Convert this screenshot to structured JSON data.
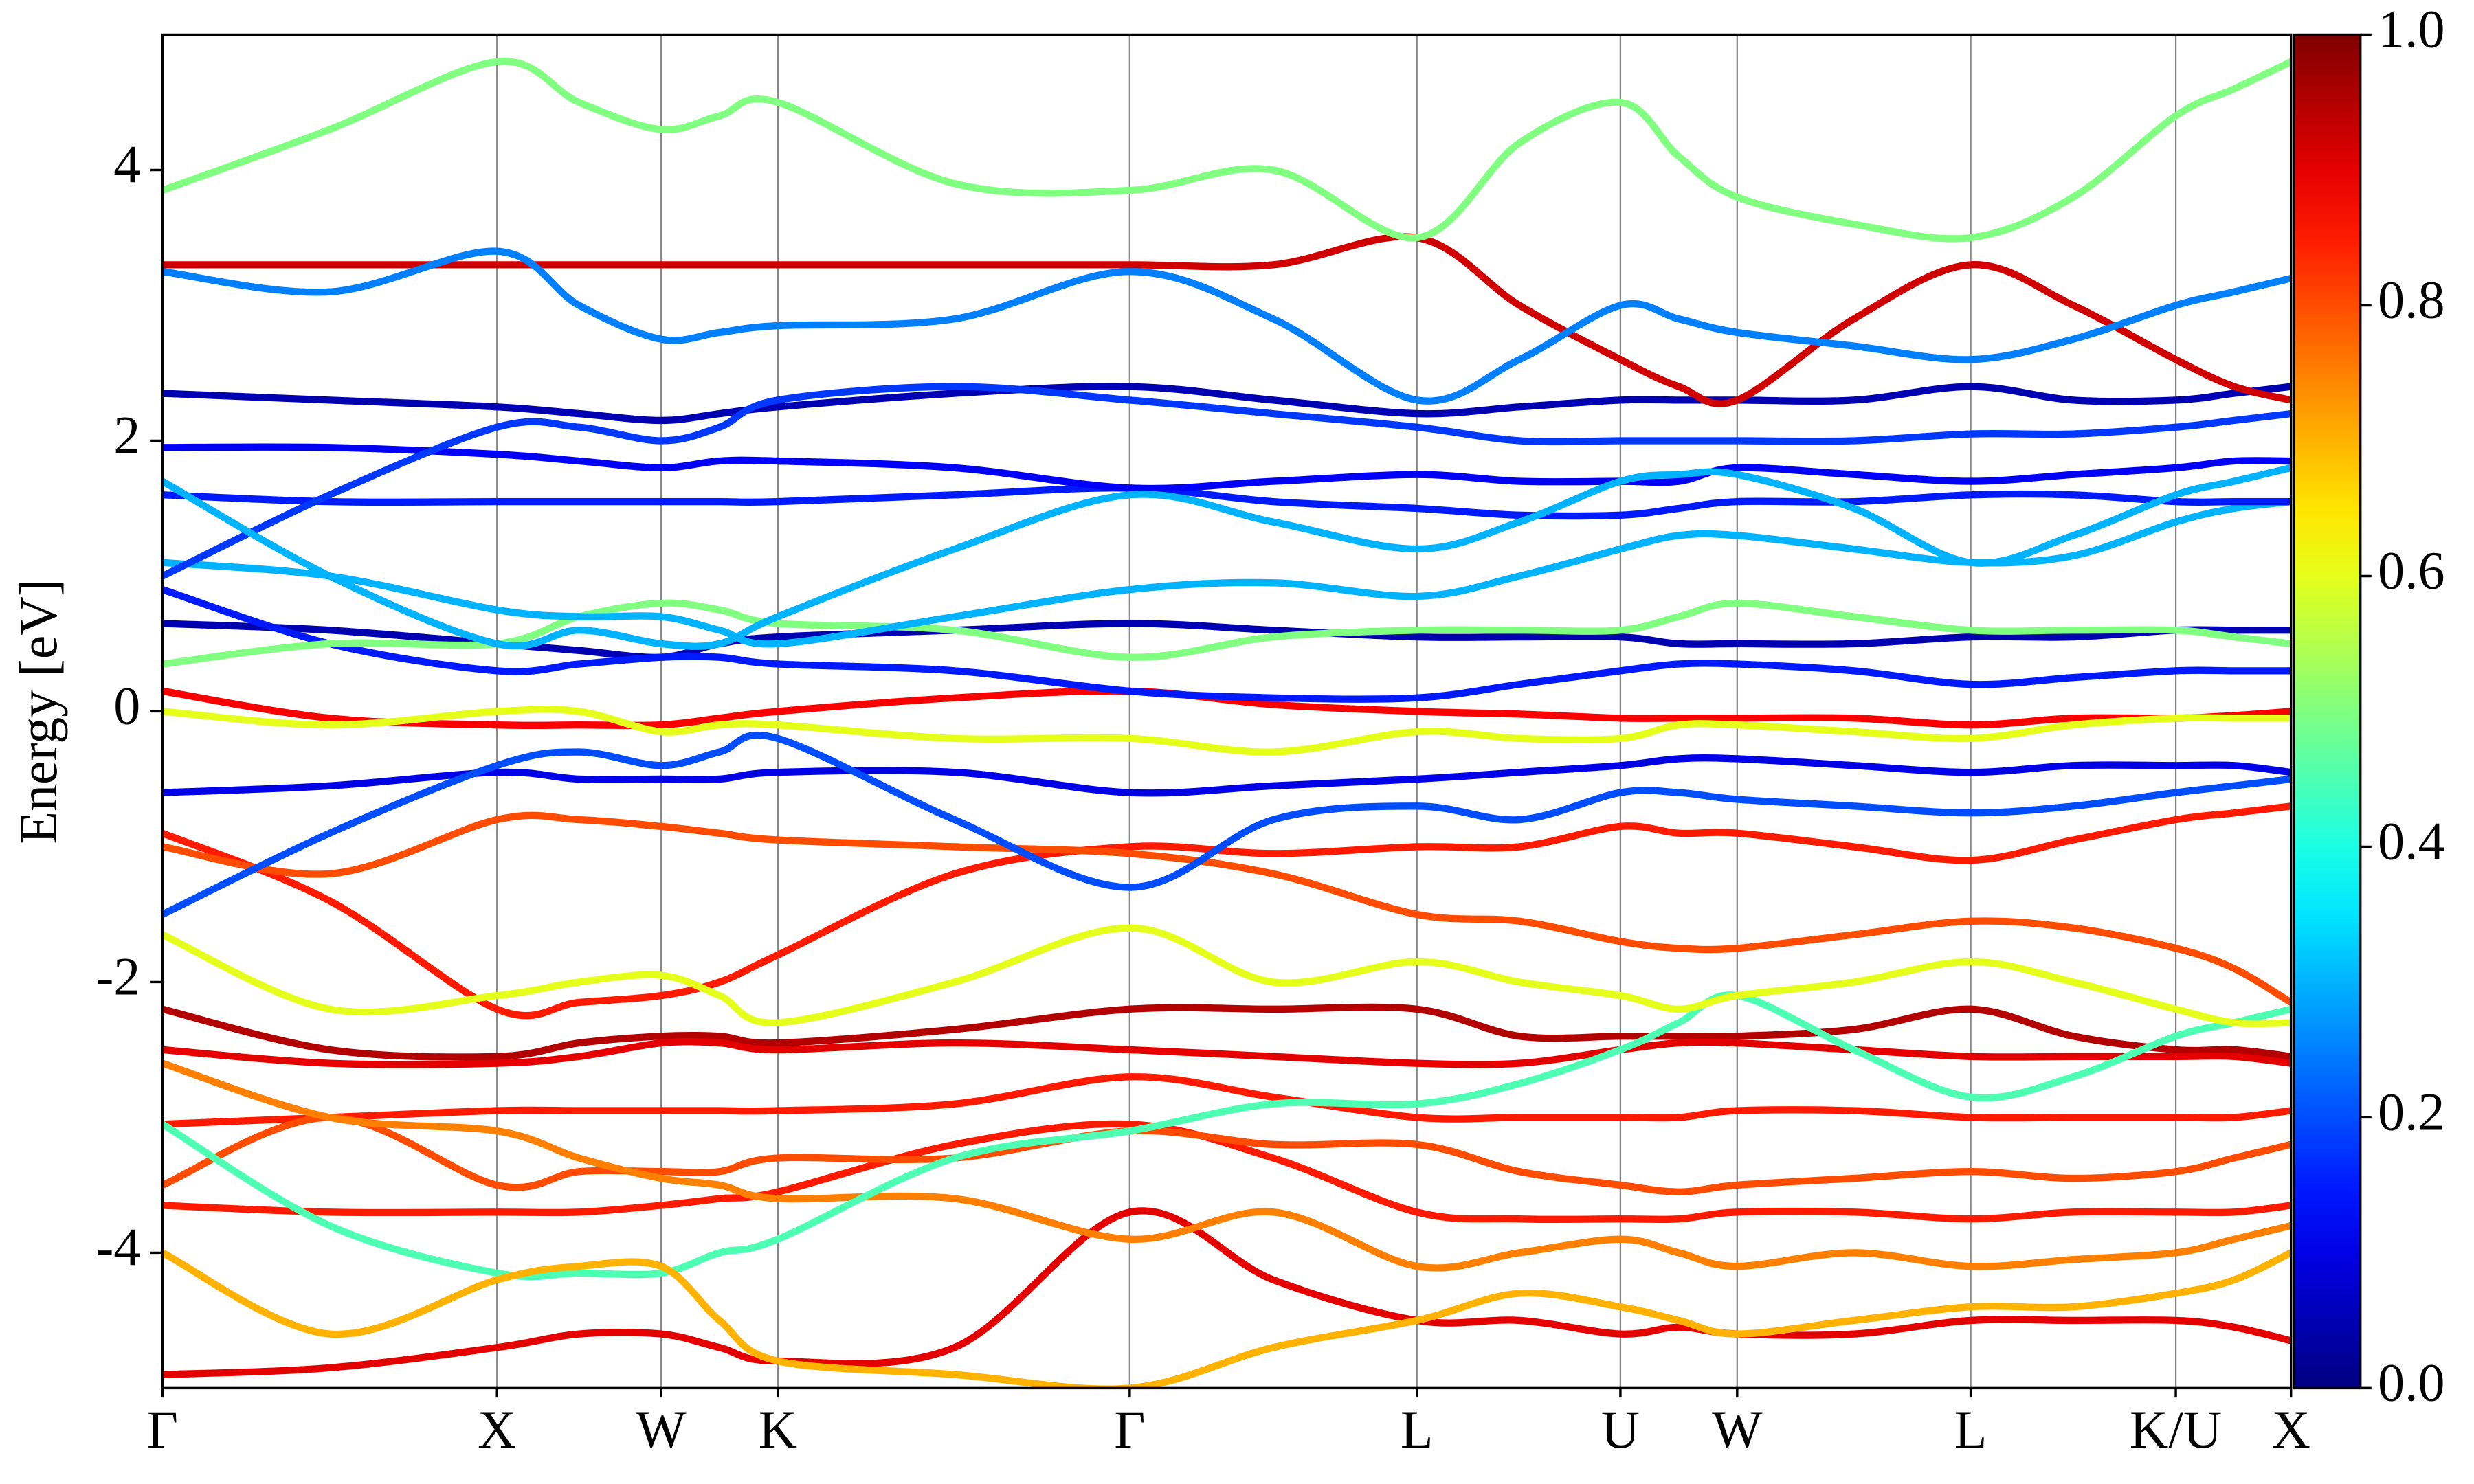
{
  "chart_data": {
    "type": "line",
    "ylabel": "Energy [eV]",
    "x": [
      0,
      1.06,
      2.12,
      2.64,
      3.16,
      3.53,
      3.9,
      5.02,
      6.13,
      7.04,
      7.95,
      8.6,
      9.24,
      9.61,
      9.98,
      10.72,
      11.46,
      12.11,
      12.76,
      13.13,
      13.49
    ],
    "xlim": [
      0,
      13.49
    ],
    "xticks": [
      {
        "value": 0,
        "label": "Γ"
      },
      {
        "value": 2.12,
        "label": "X"
      },
      {
        "value": 3.16,
        "label": "W"
      },
      {
        "value": 3.9,
        "label": "K"
      },
      {
        "value": 6.13,
        "label": "Γ"
      },
      {
        "value": 7.95,
        "label": "L"
      },
      {
        "value": 9.24,
        "label": "U"
      },
      {
        "value": 9.98,
        "label": "W"
      },
      {
        "value": 11.46,
        "label": "L"
      },
      {
        "value": 12.76,
        "label": "K/U"
      },
      {
        "value": 13.49,
        "label": "X"
      }
    ],
    "ylim": [
      -5,
      5
    ],
    "yticks": [
      -4,
      -2,
      0,
      2,
      4
    ],
    "colorbar": {
      "lim": [
        0,
        1
      ],
      "ticks": [
        {
          "value": 0,
          "label": "0.0"
        },
        {
          "value": 0.2,
          "label": "0.2"
        },
        {
          "value": 0.4,
          "label": "0.4"
        },
        {
          "value": 0.6,
          "label": "0.6"
        },
        {
          "value": 0.8,
          "label": "0.8"
        },
        {
          "value": 1,
          "label": "1.0"
        }
      ]
    },
    "series": [
      {
        "weight": 0.95,
        "values": [
          -2.2,
          -2.5,
          -2.55,
          -2.45,
          -2.4,
          -2.4,
          -2.45,
          -2.35,
          -2.2,
          -2.2,
          -2.2,
          -2.4,
          -2.4,
          -2.4,
          -2.4,
          -2.35,
          -2.2,
          -2.4,
          -2.5,
          -2.5,
          -2.55
        ]
      },
      {
        "weight": 0.9,
        "values": [
          -2.5,
          -2.6,
          -2.6,
          -2.55,
          -2.45,
          -2.45,
          -2.5,
          -2.45,
          -2.5,
          -2.55,
          -2.6,
          -2.6,
          -2.5,
          -2.45,
          -2.45,
          -2.5,
          -2.55,
          -2.55,
          -2.55,
          -2.55,
          -2.6
        ]
      },
      {
        "weight": 0.85,
        "values": [
          -3.05,
          -3.0,
          -2.95,
          -2.95,
          -2.95,
          -2.95,
          -2.95,
          -2.9,
          -2.7,
          -2.85,
          -3.0,
          -3.0,
          -3.0,
          -3.0,
          -2.95,
          -2.95,
          -3.0,
          -3.0,
          -3.0,
          -3.0,
          -2.95
        ]
      },
      {
        "weight": 0.85,
        "values": [
          -3.65,
          -3.7,
          -3.7,
          -3.7,
          -3.65,
          -3.6,
          -3.55,
          -3.2,
          -3.05,
          -3.3,
          -3.7,
          -3.75,
          -3.75,
          -3.75,
          -3.7,
          -3.7,
          -3.75,
          -3.7,
          -3.7,
          -3.7,
          -3.65
        ]
      },
      {
        "weight": 0.9,
        "values": [
          -4.9,
          -4.85,
          -4.7,
          -4.6,
          -4.6,
          -4.7,
          -4.8,
          -4.7,
          -3.7,
          -4.2,
          -4.5,
          -4.5,
          -4.6,
          -4.55,
          -4.6,
          -4.6,
          -4.5,
          -4.5,
          -4.5,
          -4.55,
          -4.65
        ]
      },
      {
        "weight": 0.8,
        "values": [
          -3.5,
          -3.0,
          -3.5,
          -3.4,
          -3.4,
          -3.4,
          -3.3,
          -3.3,
          -3.1,
          -3.2,
          -3.2,
          -3.4,
          -3.5,
          -3.55,
          -3.5,
          -3.45,
          -3.4,
          -3.45,
          -3.4,
          -3.3,
          -3.2
        ]
      },
      {
        "weight": 0.75,
        "values": [
          -2.6,
          -3.0,
          -3.1,
          -3.3,
          -3.45,
          -3.5,
          -3.6,
          -3.6,
          -3.9,
          -3.7,
          -4.1,
          -4.0,
          -3.9,
          -4.0,
          -4.1,
          -4.0,
          -4.1,
          -4.05,
          -4.0,
          -3.9,
          -3.8
        ]
      },
      {
        "weight": 0.45,
        "values": [
          -3.05,
          -3.8,
          -4.15,
          -4.15,
          -4.15,
          -4.0,
          -3.9,
          -3.3,
          -3.1,
          -2.9,
          -2.9,
          -2.75,
          -2.5,
          -2.3,
          -2.1,
          -2.5,
          -2.85,
          -2.7,
          -2.4,
          -2.3,
          -2.2
        ]
      },
      {
        "weight": 0.85,
        "values": [
          -0.9,
          -1.4,
          -2.2,
          -2.15,
          -2.1,
          -2.0,
          -1.8,
          -1.2,
          -1.0,
          -1.05,
          -1.0,
          -1.0,
          -0.85,
          -0.9,
          -0.9,
          -1.0,
          -1.1,
          -0.95,
          -0.8,
          -0.75,
          -0.7
        ]
      },
      {
        "weight": 0.8,
        "values": [
          -1.0,
          -1.2,
          -0.8,
          -0.8,
          -0.85,
          -0.9,
          -0.95,
          -1.0,
          -1.05,
          -1.2,
          -1.5,
          -1.55,
          -1.7,
          -1.75,
          -1.75,
          -1.65,
          -1.55,
          -1.6,
          -1.75,
          -1.9,
          -2.15
        ]
      },
      {
        "weight": 0.6,
        "values": [
          -1.65,
          -2.2,
          -2.1,
          -2.0,
          -1.95,
          -2.1,
          -2.3,
          -2.0,
          -1.6,
          -2.0,
          -1.85,
          -2.0,
          -2.1,
          -2.2,
          -2.1,
          -2.0,
          -1.85,
          -2.0,
          -2.2,
          -2.3,
          -2.3
        ]
      },
      {
        "weight": 0.88,
        "values": [
          0.15,
          -0.05,
          -0.1,
          -0.1,
          -0.1,
          -0.05,
          0.0,
          0.1,
          0.15,
          0.05,
          0.0,
          -0.02,
          -0.05,
          -0.05,
          -0.05,
          -0.05,
          -0.1,
          -0.05,
          -0.05,
          -0.03,
          0.0
        ]
      },
      {
        "weight": 0.6,
        "values": [
          0.0,
          -0.1,
          0.0,
          0.0,
          -0.15,
          -0.1,
          -0.1,
          -0.2,
          -0.2,
          -0.3,
          -0.15,
          -0.2,
          -0.2,
          -0.1,
          -0.1,
          -0.15,
          -0.2,
          -0.1,
          -0.05,
          -0.05,
          -0.05
        ]
      },
      {
        "weight": 0.1,
        "values": [
          -0.6,
          -0.55,
          -0.45,
          -0.5,
          -0.5,
          -0.5,
          -0.45,
          -0.45,
          -0.6,
          -0.55,
          -0.5,
          -0.45,
          -0.4,
          -0.35,
          -0.35,
          -0.4,
          -0.45,
          -0.4,
          -0.4,
          -0.4,
          -0.45
        ]
      },
      {
        "weight": 0.05,
        "values": [
          0.65,
          0.6,
          0.5,
          0.45,
          0.4,
          0.5,
          0.55,
          0.6,
          0.65,
          0.6,
          0.55,
          0.55,
          0.55,
          0.5,
          0.5,
          0.5,
          0.55,
          0.55,
          0.6,
          0.6,
          0.6
        ]
      },
      {
        "weight": 0.15,
        "values": [
          0.9,
          0.5,
          0.3,
          0.35,
          0.4,
          0.4,
          0.35,
          0.3,
          0.15,
          0.1,
          0.1,
          0.2,
          0.3,
          0.35,
          0.35,
          0.3,
          0.2,
          0.25,
          0.3,
          0.3,
          0.3
        ]
      },
      {
        "weight": 0.5,
        "values": [
          0.35,
          0.5,
          0.5,
          0.7,
          0.8,
          0.75,
          0.65,
          0.6,
          0.4,
          0.55,
          0.6,
          0.6,
          0.6,
          0.7,
          0.8,
          0.7,
          0.6,
          0.6,
          0.6,
          0.55,
          0.5
        ]
      },
      {
        "weight": 0.3,
        "values": [
          1.1,
          1.0,
          0.75,
          0.7,
          0.7,
          0.6,
          0.5,
          0.7,
          0.9,
          0.95,
          0.85,
          1.0,
          1.2,
          1.3,
          1.3,
          1.2,
          1.1,
          1.15,
          1.4,
          1.5,
          1.55
        ]
      },
      {
        "weight": 0.15,
        "values": [
          1.6,
          1.55,
          1.55,
          1.55,
          1.55,
          1.55,
          1.55,
          1.6,
          1.65,
          1.55,
          1.5,
          1.45,
          1.45,
          1.5,
          1.55,
          1.55,
          1.6,
          1.6,
          1.55,
          1.55,
          1.55
        ]
      },
      {
        "weight": 0.12,
        "values": [
          1.95,
          1.95,
          1.9,
          1.85,
          1.8,
          1.85,
          1.85,
          1.8,
          1.65,
          1.7,
          1.75,
          1.7,
          1.7,
          1.7,
          1.8,
          1.75,
          1.7,
          1.75,
          1.8,
          1.85,
          1.85
        ]
      },
      {
        "weight": 0.05,
        "values": [
          2.35,
          2.3,
          2.25,
          2.2,
          2.15,
          2.2,
          2.25,
          2.35,
          2.4,
          2.3,
          2.2,
          2.25,
          2.3,
          2.3,
          2.3,
          2.3,
          2.4,
          2.3,
          2.3,
          2.35,
          2.4
        ]
      },
      {
        "weight": 0.18,
        "values": [
          1.0,
          1.6,
          2.1,
          2.1,
          2.0,
          2.1,
          2.3,
          2.4,
          2.3,
          2.2,
          2.1,
          2.0,
          2.0,
          2.0,
          2.0,
          2.0,
          2.05,
          2.05,
          2.1,
          2.15,
          2.2
        ]
      },
      {
        "weight": 0.92,
        "values": [
          3.3,
          3.3,
          3.3,
          3.3,
          3.3,
          3.3,
          3.3,
          3.3,
          3.3,
          3.3,
          3.5,
          3.0,
          2.6,
          2.4,
          2.3,
          2.9,
          3.3,
          3.0,
          2.6,
          2.4,
          2.3
        ]
      },
      {
        "weight": 0.25,
        "values": [
          3.25,
          3.1,
          3.4,
          3.0,
          2.75,
          2.8,
          2.85,
          2.9,
          3.25,
          2.9,
          2.3,
          2.6,
          3.0,
          2.9,
          2.8,
          2.7,
          2.6,
          2.75,
          3.0,
          3.1,
          3.2
        ]
      },
      {
        "weight": 0.5,
        "values": [
          3.85,
          4.3,
          4.8,
          4.5,
          4.3,
          4.4,
          4.5,
          3.9,
          3.85,
          4.0,
          3.5,
          4.2,
          4.5,
          4.1,
          3.8,
          3.6,
          3.5,
          3.8,
          4.4,
          4.6,
          4.8
        ]
      },
      {
        "weight": 0.3,
        "values": [
          1.7,
          1.0,
          0.5,
          0.6,
          0.5,
          0.5,
          0.7,
          1.2,
          1.6,
          1.4,
          1.2,
          1.4,
          1.7,
          1.75,
          1.75,
          1.5,
          1.1,
          1.3,
          1.6,
          1.7,
          1.8
        ]
      },
      {
        "weight": 0.2,
        "values": [
          -1.5,
          -0.9,
          -0.4,
          -0.3,
          -0.4,
          -0.3,
          -0.2,
          -0.8,
          -1.3,
          -0.8,
          -0.7,
          -0.8,
          -0.6,
          -0.6,
          -0.65,
          -0.7,
          -0.75,
          -0.7,
          -0.6,
          -0.55,
          -0.5
        ]
      },
      {
        "weight": 0.7,
        "values": [
          -4.0,
          -4.6,
          -4.2,
          -4.1,
          -4.1,
          -4.5,
          -4.8,
          -4.9,
          -5.0,
          -4.7,
          -4.5,
          -4.3,
          -4.4,
          -4.5,
          -4.6,
          -4.5,
          -4.4,
          -4.4,
          -4.3,
          -4.2,
          -4.0
        ]
      }
    ]
  }
}
